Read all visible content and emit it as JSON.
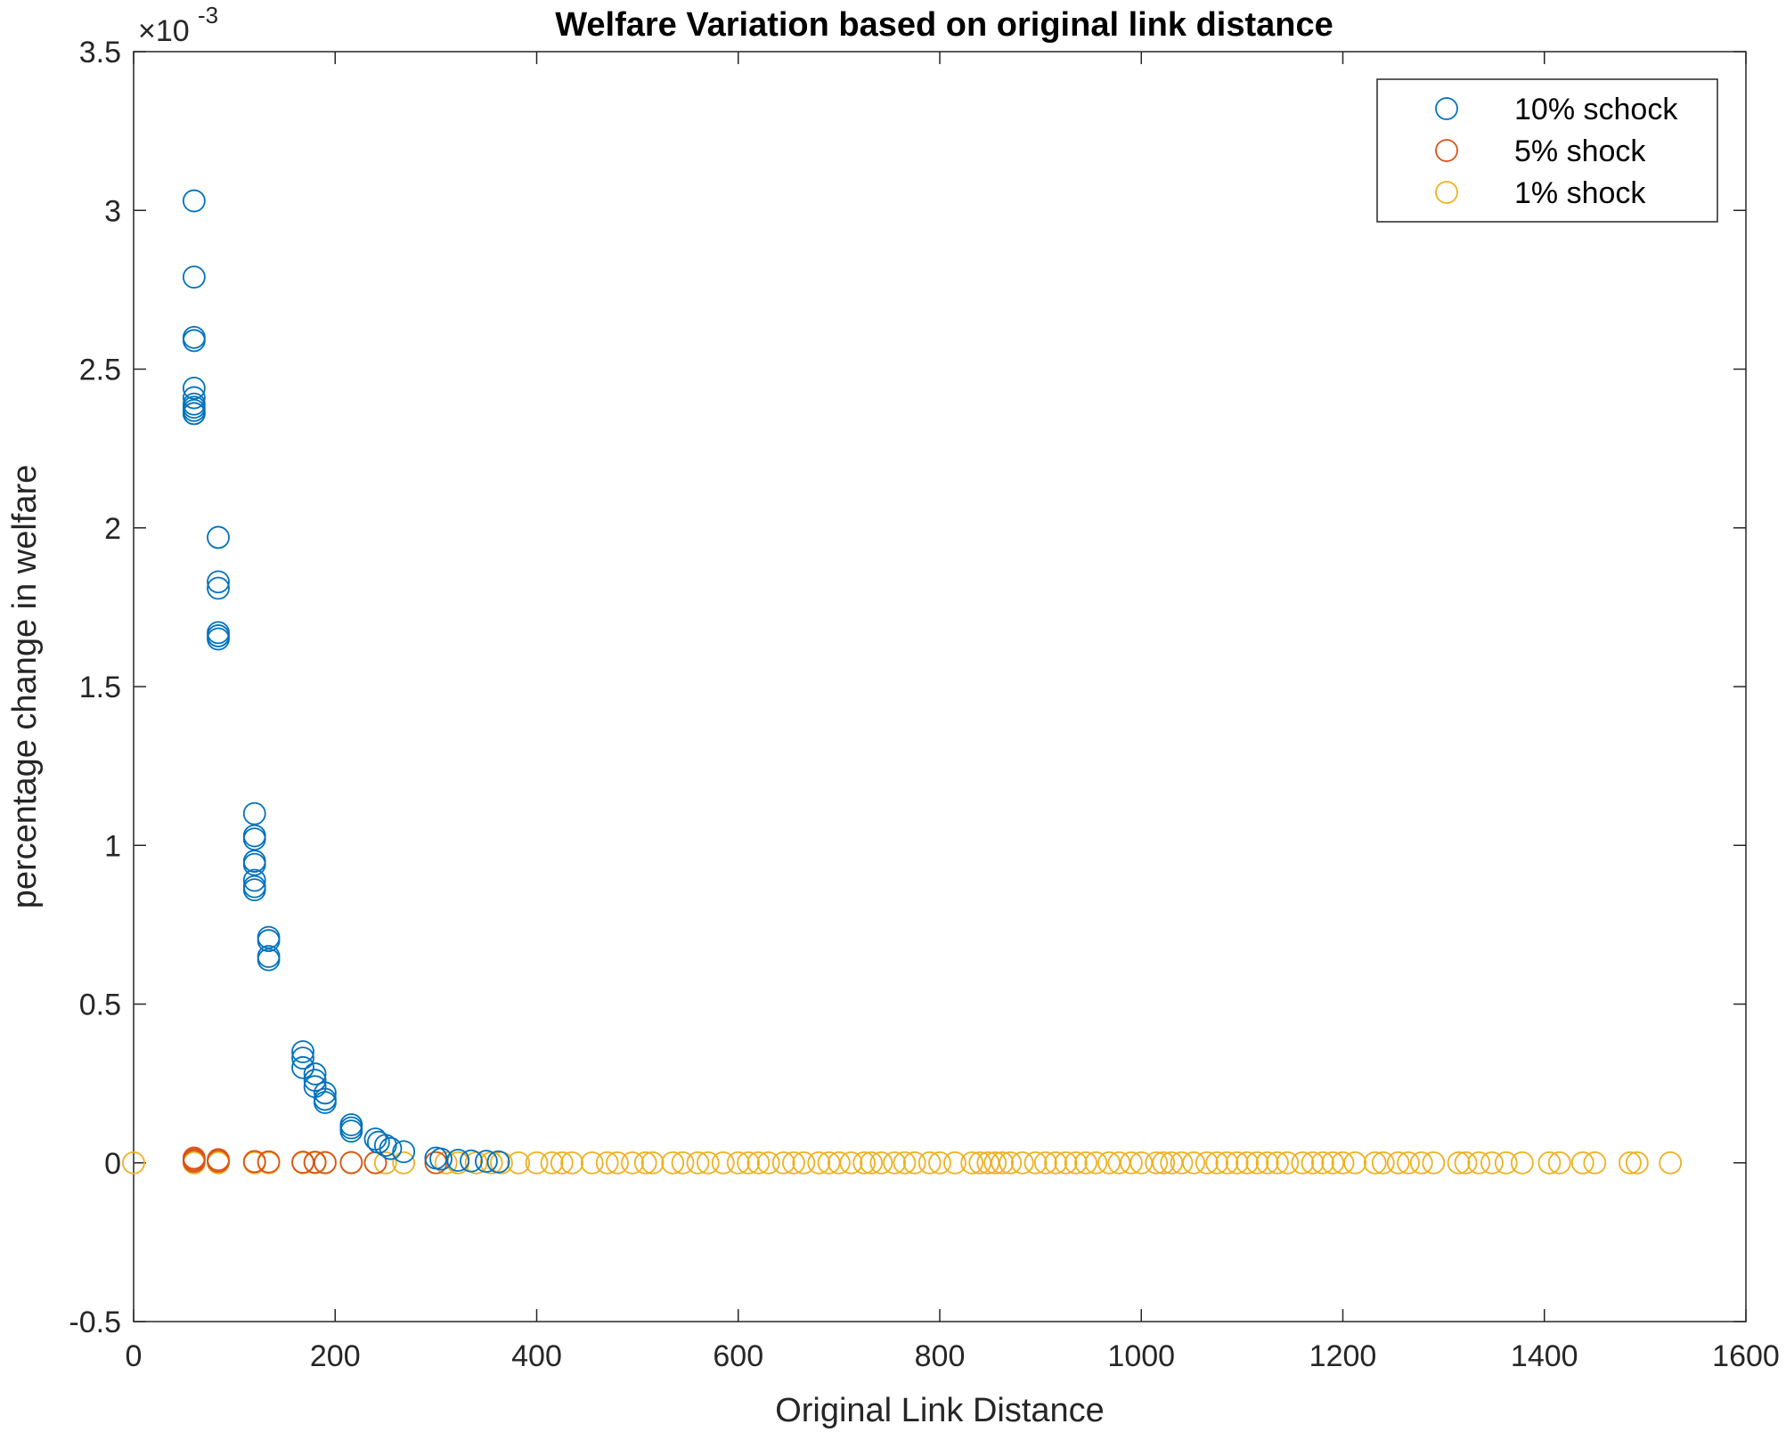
{
  "chart_data": {
    "type": "scatter",
    "title": "Welfare Variation based on original link distance",
    "xlabel": "Original Link Distance",
    "ylabel": "percentage change in welfare",
    "xlim": [
      0,
      1600
    ],
    "ylim": [
      -0.5,
      3.5
    ],
    "y_scale_exponent_base": "×10",
    "y_scale_exponent_power": "-3",
    "x_ticks": [
      "0",
      "200",
      "400",
      "600",
      "800",
      "1000",
      "1200",
      "1400",
      "1600"
    ],
    "y_ticks": [
      "-0.5",
      "0",
      "0.5",
      "1",
      "1.5",
      "2",
      "2.5",
      "3",
      "3.5"
    ],
    "x_tick_values": [
      0,
      200,
      400,
      600,
      800,
      1000,
      1200,
      1400,
      1600
    ],
    "y_tick_values": [
      -0.5,
      0,
      0.5,
      1,
      1.5,
      2,
      2.5,
      3,
      3.5
    ],
    "marker": "open-circle",
    "grid": false,
    "legend_position": "top-right",
    "colors": {
      "10pct": "#0072BD",
      "5pct": "#D95319",
      "1pct": "#EDB120"
    },
    "series": [
      {
        "name": "10% schock",
        "color": "#0072BD",
        "points": [
          [
            60,
            3.03
          ],
          [
            60,
            2.79
          ],
          [
            60,
            2.6
          ],
          [
            60,
            2.59
          ],
          [
            60,
            2.44
          ],
          [
            60,
            2.41
          ],
          [
            60,
            2.39
          ],
          [
            60,
            2.38
          ],
          [
            60,
            2.37
          ],
          [
            60,
            2.36
          ],
          [
            60,
            2.36
          ],
          [
            84,
            1.97
          ],
          [
            84,
            1.83
          ],
          [
            84,
            1.81
          ],
          [
            84,
            1.67
          ],
          [
            84,
            1.66
          ],
          [
            84,
            1.65
          ],
          [
            120,
            1.1
          ],
          [
            120,
            1.03
          ],
          [
            120,
            1.02
          ],
          [
            120,
            0.95
          ],
          [
            120,
            0.94
          ],
          [
            120,
            0.89
          ],
          [
            120,
            0.87
          ],
          [
            120,
            0.86
          ],
          [
            134,
            0.71
          ],
          [
            134,
            0.7
          ],
          [
            134,
            0.65
          ],
          [
            134,
            0.64
          ],
          [
            168,
            0.35
          ],
          [
            168,
            0.33
          ],
          [
            168,
            0.3
          ],
          [
            180,
            0.28
          ],
          [
            180,
            0.26
          ],
          [
            180,
            0.24
          ],
          [
            190,
            0.22
          ],
          [
            190,
            0.2
          ],
          [
            190,
            0.19
          ],
          [
            216,
            0.12
          ],
          [
            216,
            0.11
          ],
          [
            216,
            0.1
          ],
          [
            240,
            0.075
          ],
          [
            243,
            0.065
          ],
          [
            250,
            0.055
          ],
          [
            255,
            0.045
          ],
          [
            268,
            0.035
          ],
          [
            300,
            0.015
          ],
          [
            305,
            0.012
          ],
          [
            322,
            0.008
          ],
          [
            335,
            0.006
          ],
          [
            350,
            0.005
          ],
          [
            362,
            0.003
          ]
        ]
      },
      {
        "name": "5% shock",
        "color": "#D95319",
        "points": [
          [
            60,
            0.015
          ],
          [
            60,
            0.01
          ],
          [
            60,
            0.005
          ],
          [
            84,
            0.01
          ],
          [
            84,
            0.005
          ],
          [
            120,
            0.004
          ],
          [
            134,
            0.003
          ],
          [
            168,
            0.002
          ],
          [
            180,
            0.002
          ],
          [
            190,
            0.001
          ],
          [
            216,
            0.001
          ],
          [
            240,
            0.0005
          ],
          [
            300,
            0.0003
          ]
        ]
      },
      {
        "name": "1% shock",
        "color": "#EDB120",
        "points": [
          [
            0,
            0
          ],
          [
            60,
            0
          ],
          [
            84,
            0
          ],
          [
            120,
            0
          ],
          [
            134,
            0
          ],
          [
            168,
            0
          ],
          [
            180,
            0
          ],
          [
            190,
            0
          ],
          [
            216,
            0
          ],
          [
            240,
            0
          ],
          [
            250,
            0
          ],
          [
            268,
            0
          ],
          [
            300,
            0
          ],
          [
            310,
            0
          ],
          [
            322,
            0
          ],
          [
            340,
            0
          ],
          [
            355,
            0
          ],
          [
            365,
            0
          ],
          [
            382,
            0
          ],
          [
            400,
            0
          ],
          [
            415,
            0
          ],
          [
            425,
            0
          ],
          [
            435,
            0
          ],
          [
            455,
            0
          ],
          [
            470,
            0
          ],
          [
            480,
            0
          ],
          [
            495,
            0
          ],
          [
            508,
            0
          ],
          [
            515,
            0
          ],
          [
            535,
            0
          ],
          [
            545,
            0
          ],
          [
            560,
            0
          ],
          [
            570,
            0
          ],
          [
            585,
            0
          ],
          [
            600,
            0
          ],
          [
            610,
            0
          ],
          [
            620,
            0
          ],
          [
            630,
            0
          ],
          [
            645,
            0
          ],
          [
            655,
            0
          ],
          [
            665,
            0
          ],
          [
            680,
            0
          ],
          [
            690,
            0
          ],
          [
            700,
            0
          ],
          [
            712,
            0
          ],
          [
            725,
            0
          ],
          [
            732,
            0
          ],
          [
            742,
            0
          ],
          [
            755,
            0
          ],
          [
            765,
            0
          ],
          [
            775,
            0
          ],
          [
            790,
            0
          ],
          [
            800,
            0
          ],
          [
            815,
            0
          ],
          [
            832,
            0
          ],
          [
            840,
            0
          ],
          [
            848,
            0
          ],
          [
            855,
            0
          ],
          [
            862,
            0
          ],
          [
            870,
            0
          ],
          [
            882,
            0
          ],
          [
            895,
            0
          ],
          [
            905,
            0
          ],
          [
            915,
            0
          ],
          [
            925,
            0
          ],
          [
            935,
            0
          ],
          [
            945,
            0
          ],
          [
            955,
            0
          ],
          [
            968,
            0
          ],
          [
            978,
            0
          ],
          [
            990,
            0
          ],
          [
            1000,
            0
          ],
          [
            1015,
            0
          ],
          [
            1022,
            0
          ],
          [
            1030,
            0
          ],
          [
            1040,
            0
          ],
          [
            1052,
            0
          ],
          [
            1065,
            0
          ],
          [
            1075,
            0
          ],
          [
            1085,
            0
          ],
          [
            1095,
            0
          ],
          [
            1105,
            0
          ],
          [
            1115,
            0
          ],
          [
            1125,
            0
          ],
          [
            1135,
            0
          ],
          [
            1145,
            0
          ],
          [
            1160,
            0
          ],
          [
            1170,
            0
          ],
          [
            1180,
            0
          ],
          [
            1190,
            0
          ],
          [
            1200,
            0
          ],
          [
            1212,
            0
          ],
          [
            1232,
            0
          ],
          [
            1240,
            0
          ],
          [
            1255,
            0
          ],
          [
            1265,
            0
          ],
          [
            1278,
            0
          ],
          [
            1290,
            0
          ],
          [
            1315,
            0
          ],
          [
            1322,
            0
          ],
          [
            1335,
            0
          ],
          [
            1348,
            0
          ],
          [
            1362,
            0
          ],
          [
            1378,
            0
          ],
          [
            1405,
            0
          ],
          [
            1415,
            0
          ],
          [
            1438,
            0
          ],
          [
            1450,
            0
          ],
          [
            1485,
            0
          ],
          [
            1492,
            0
          ],
          [
            1525,
            0
          ]
        ]
      }
    ]
  }
}
